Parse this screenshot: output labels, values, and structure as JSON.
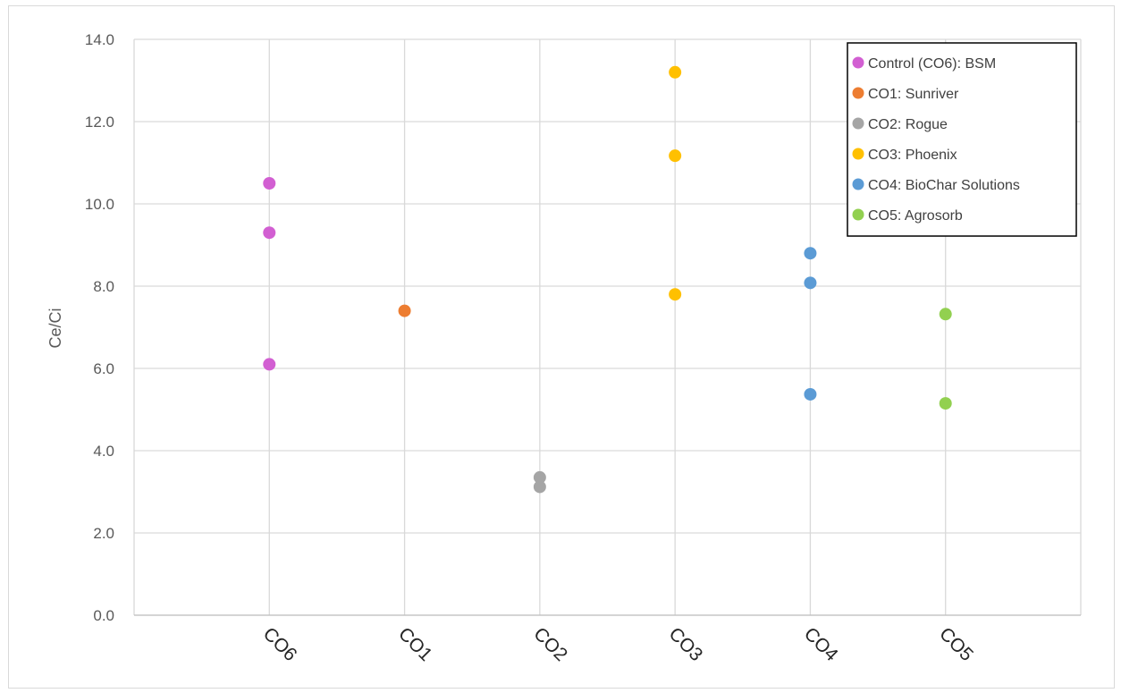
{
  "chart_data": {
    "type": "scatter",
    "title": "",
    "xlabel": "",
    "ylabel": "Ce/Ci",
    "categories": [
      "CO6",
      "CO1",
      "CO2",
      "CO3",
      "CO4",
      "CO5"
    ],
    "ylim": [
      0,
      14
    ],
    "ytick_step": 2,
    "y_tick_format": "one-decimal",
    "grid": {
      "horizontal": true,
      "vertical": true
    },
    "legend_position": "top-right",
    "series": [
      {
        "name": "Control (CO6): BSM",
        "color": "#d25fd2",
        "category": "CO6",
        "values": [
          10.5,
          9.3,
          6.1
        ]
      },
      {
        "name": "CO1: Sunriver",
        "color": "#ed7d31",
        "category": "CO1",
        "values": [
          7.4
        ]
      },
      {
        "name": "CO2: Rogue",
        "color": "#a5a5a5",
        "category": "CO2",
        "values": [
          3.35,
          3.12
        ]
      },
      {
        "name": "CO3: Phoenix",
        "color": "#ffc000",
        "category": "CO3",
        "values": [
          13.2,
          11.17,
          7.8
        ]
      },
      {
        "name": "CO4: BioChar Solutions",
        "color": "#5b9bd5",
        "category": "CO4",
        "values": [
          8.8,
          8.08,
          5.37
        ]
      },
      {
        "name": "CO5: Agrosorb",
        "color": "#92d050",
        "category": "CO5",
        "values": [
          7.32,
          5.15
        ]
      }
    ]
  }
}
